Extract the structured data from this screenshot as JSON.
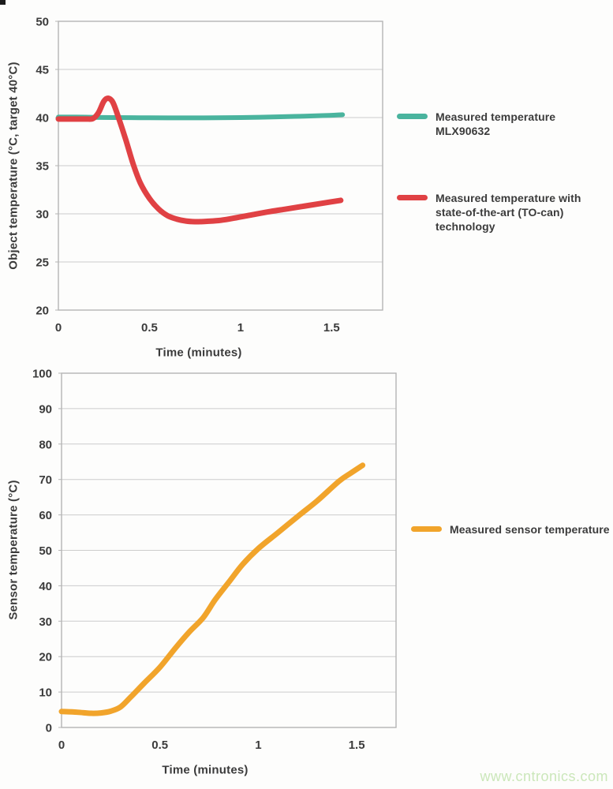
{
  "chart_data": [
    {
      "type": "line",
      "title": "",
      "xlabel": "Time (minutes)",
      "ylabel": "Object temperature (°C, target 40°C)",
      "xlim": [
        0,
        1.78
      ],
      "ylim": [
        20,
        50
      ],
      "xticks": [
        0,
        0.5,
        1,
        1.5
      ],
      "yticks": [
        20,
        25,
        30,
        35,
        40,
        45,
        50
      ],
      "grid": "horizontal",
      "legend_position": "right",
      "series": [
        {
          "name": "Measured temperature MLX90632",
          "color": "#4ab49e",
          "stroke_width": 6,
          "x": [
            0,
            0.1,
            0.2,
            0.3,
            0.45,
            0.6,
            0.8,
            1.0,
            1.15,
            1.3,
            1.45,
            1.56
          ],
          "y": [
            40.05,
            40.05,
            40.02,
            40.0,
            39.98,
            39.97,
            39.97,
            40.0,
            40.05,
            40.12,
            40.2,
            40.3
          ]
        },
        {
          "name": "Measured temperature with state-of-the-art (TO-can) technology",
          "color": "#e04144",
          "stroke_width": 7,
          "x": [
            0,
            0.08,
            0.15,
            0.19,
            0.22,
            0.25,
            0.275,
            0.3,
            0.33,
            0.37,
            0.41,
            0.45,
            0.5,
            0.55,
            0.6,
            0.65,
            0.7,
            0.75,
            0.8,
            0.88,
            0.95,
            1.05,
            1.15,
            1.25,
            1.35,
            1.45,
            1.55
          ],
          "y": [
            39.85,
            39.85,
            39.85,
            39.9,
            40.5,
            41.7,
            42.0,
            41.55,
            40.0,
            37.7,
            35.2,
            33.2,
            31.6,
            30.5,
            29.8,
            29.45,
            29.25,
            29.18,
            29.2,
            29.3,
            29.5,
            29.85,
            30.2,
            30.5,
            30.8,
            31.1,
            31.4
          ]
        }
      ]
    },
    {
      "type": "line",
      "title": "",
      "xlabel": "Time (minutes)",
      "ylabel": "Sensor temperature (°C)",
      "xlim": [
        0,
        1.7
      ],
      "ylim": [
        0,
        100
      ],
      "xticks": [
        0,
        0.5,
        1,
        1.5
      ],
      "yticks": [
        0,
        10,
        20,
        30,
        40,
        50,
        60,
        70,
        80,
        90,
        100
      ],
      "grid": "horizontal",
      "legend_position": "right",
      "series": [
        {
          "name": "Measured sensor temperature",
          "color": "#f1a42b",
          "stroke_width": 7,
          "x": [
            0,
            0.08,
            0.15,
            0.2,
            0.25,
            0.3,
            0.35,
            0.42,
            0.5,
            0.58,
            0.65,
            0.72,
            0.78,
            0.85,
            0.92,
            1.0,
            1.1,
            1.21,
            1.3,
            1.41,
            1.47,
            1.53
          ],
          "y": [
            4.5,
            4.3,
            4.0,
            4.1,
            4.6,
            5.8,
            8.5,
            12.5,
            17.0,
            22.5,
            27.0,
            31.0,
            36.0,
            41.0,
            46.0,
            50.5,
            55.0,
            60.0,
            64.0,
            69.5,
            71.8,
            74.0
          ]
        }
      ]
    }
  ],
  "watermark": {
    "text": "www.cntronics.com",
    "color": "#cbe7ba"
  },
  "colors": {
    "grid": "#cccccc",
    "plot_border": "#b5b5b5",
    "axis_text": "#3b3b3b",
    "background": "#fdfdfc"
  }
}
